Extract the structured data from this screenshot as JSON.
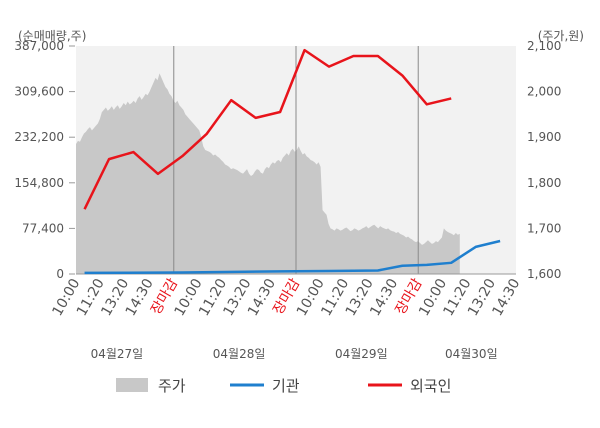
{
  "chart_data": {
    "type": "line",
    "title": "",
    "left_unit_label": "(순매매량,주)",
    "right_unit_label": "(주가,원)",
    "left_axis": {
      "ylim": [
        0,
        387000
      ],
      "ticks": [
        0,
        77400,
        154800,
        232200,
        309600,
        387000
      ],
      "tick_labels": [
        "0",
        "77,400",
        "154,800",
        "232,200",
        "309,600",
        "387,000"
      ]
    },
    "right_axis": {
      "ylim": [
        1600,
        2100
      ],
      "ticks": [
        1600,
        1700,
        1800,
        1900,
        2000,
        2100
      ],
      "tick_labels": [
        "1,600",
        "1,700",
        "1,800",
        "1,900",
        "2,000",
        "2,100"
      ]
    },
    "x_ticks": [
      {
        "label": "10:00",
        "highlight": false
      },
      {
        "label": "11:20",
        "highlight": false
      },
      {
        "label": "13:20",
        "highlight": false
      },
      {
        "label": "14:30",
        "highlight": false
      },
      {
        "label": "장마감",
        "highlight": true
      },
      {
        "label": "10:00",
        "highlight": false
      },
      {
        "label": "11:20",
        "highlight": false
      },
      {
        "label": "13:20",
        "highlight": false
      },
      {
        "label": "14:30",
        "highlight": false
      },
      {
        "label": "장마감",
        "highlight": true
      },
      {
        "label": "10:00",
        "highlight": false
      },
      {
        "label": "11:20",
        "highlight": false
      },
      {
        "label": "13:20",
        "highlight": false
      },
      {
        "label": "14:30",
        "highlight": false
      },
      {
        "label": "장마감",
        "highlight": true
      },
      {
        "label": "10:00",
        "highlight": false
      },
      {
        "label": "11:20",
        "highlight": false
      },
      {
        "label": "13:20",
        "highlight": false
      },
      {
        "label": "14:30",
        "highlight": false
      }
    ],
    "dates": [
      "04월27일",
      "04월28일",
      "04월29일",
      "04월30일"
    ],
    "price_series": {
      "name": "주가",
      "axis": "right",
      "color": "#c8c8c8",
      "values": [
        1885,
        1892,
        1890,
        1900,
        1908,
        1912,
        1918,
        1922,
        1915,
        1920,
        1925,
        1930,
        1940,
        1955,
        1960,
        1965,
        1958,
        1962,
        1968,
        1960,
        1966,
        1970,
        1962,
        1968,
        1975,
        1970,
        1978,
        1972,
        1975,
        1980,
        1975,
        1985,
        1990,
        1982,
        1988,
        1995,
        1992,
        2000,
        2010,
        2020,
        2030,
        2025,
        2040,
        2030,
        2020,
        2010,
        2005,
        1995,
        1990,
        1980,
        1975,
        1980,
        1970,
        1965,
        1960,
        1950,
        1945,
        1940,
        1935,
        1930,
        1925,
        1920,
        1915,
        1900,
        1880,
        1872,
        1870,
        1868,
        1865,
        1860,
        1862,
        1858,
        1855,
        1850,
        1846,
        1840,
        1838,
        1835,
        1830,
        1832,
        1830,
        1828,
        1825,
        1822,
        1820,
        1825,
        1830,
        1820,
        1815,
        1818,
        1825,
        1830,
        1828,
        1822,
        1820,
        1830,
        1835,
        1832,
        1840,
        1845,
        1842,
        1848,
        1850,
        1845,
        1855,
        1860,
        1865,
        1860,
        1870,
        1875,
        1868,
        1872,
        1880,
        1870,
        1862,
        1865,
        1858,
        1855,
        1850,
        1848,
        1845,
        1840,
        1845,
        1835,
        1740,
        1735,
        1730,
        1710,
        1700,
        1698,
        1695,
        1700,
        1698,
        1695,
        1697,
        1700,
        1702,
        1698,
        1694,
        1696,
        1700,
        1698,
        1695,
        1697,
        1700,
        1702,
        1705,
        1700,
        1703,
        1706,
        1708,
        1704,
        1700,
        1705,
        1702,
        1700,
        1698,
        1700,
        1696,
        1694,
        1693,
        1690,
        1692,
        1688,
        1686,
        1684,
        1680,
        1682,
        1678,
        1676,
        1672,
        1670,
        1672,
        1668,
        1664,
        1666,
        1670,
        1674,
        1670,
        1666,
        1668,
        1672,
        1670,
        1675,
        1680,
        1700,
        1695,
        1692,
        1690,
        1688,
        1685,
        1690,
        1686,
        1688
      ]
    },
    "institution_series": {
      "name": "기관",
      "axis": "left",
      "color": "#1f7fce",
      "x_index": [
        0,
        4,
        8,
        10,
        12,
        13,
        14,
        15,
        16,
        17
      ],
      "values": [
        2000,
        2500,
        4500,
        5000,
        6000,
        14000,
        15500,
        19000,
        46000,
        56000
      ]
    },
    "foreign_series": {
      "name": "외국인",
      "axis": "left",
      "color": "#e8141b",
      "x_index": [
        0,
        1,
        2,
        3,
        4,
        5,
        6,
        7,
        8,
        9,
        10,
        11,
        12,
        13,
        14,
        15
      ],
      "values": [
        110000,
        195000,
        207000,
        170000,
        200000,
        238000,
        295000,
        265000,
        275000,
        380000,
        352000,
        370000,
        370000,
        337000,
        288000,
        298000
      ]
    },
    "legend": {
      "position": "bottom",
      "items": [
        {
          "label": "주가",
          "color": "#c8c8c8",
          "style": "area"
        },
        {
          "label": "기관",
          "color": "#1f7fce",
          "style": "line"
        },
        {
          "label": "외국인",
          "color": "#e8141b",
          "style": "line"
        }
      ]
    },
    "grid": false
  }
}
